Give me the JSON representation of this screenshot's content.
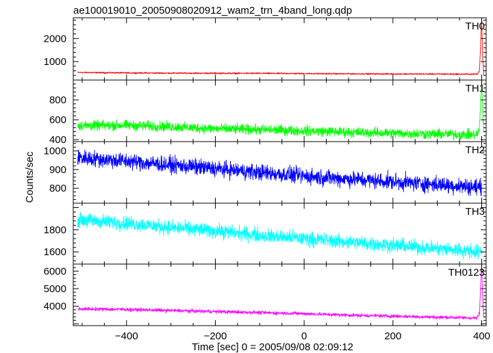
{
  "chart_data": {
    "type": "line",
    "title": "ae100019010_20050908020912_wam2_trn_4band_long.qdp",
    "xlabel": "Time [sec] 0 = 2005/09/08 02:09:12",
    "ylabel": "Counts/sec",
    "xlim": [
      -520,
      410
    ],
    "xticks": [
      -400,
      -200,
      0,
      200,
      400
    ],
    "xtick_labels": [
      "−400",
      "−200",
      "0",
      "200",
      "400"
    ],
    "grid": false,
    "panels": [
      {
        "name": "TH0",
        "color": "#ff0000",
        "ylim": [
          200,
          2900
        ],
        "yticks": [
          1000,
          2000
        ],
        "x": [
          -510,
          -400,
          -300,
          -200,
          -100,
          0,
          100,
          200,
          300,
          380,
          390,
          395,
          397,
          400,
          402,
          405
        ],
        "y": [
          530,
          510,
          500,
          495,
          490,
          480,
          470,
          465,
          460,
          455,
          455,
          600,
          1500,
          2900,
          1200,
          400
        ],
        "noise": 22
      },
      {
        "name": "TH1",
        "color": "#00ff00",
        "ylim": [
          380,
          1000
        ],
        "yticks": [
          400,
          600,
          800
        ],
        "x": [
          -510,
          -400,
          -300,
          -200,
          -100,
          0,
          100,
          200,
          300,
          380,
          390,
          395,
          397,
          400,
          402,
          405
        ],
        "y": [
          540,
          545,
          530,
          510,
          500,
          490,
          475,
          465,
          455,
          450,
          450,
          520,
          700,
          1000,
          700,
          450
        ],
        "noise": 35
      },
      {
        "name": "TH2",
        "color": "#0000ff",
        "ylim": [
          720,
          1050
        ],
        "yticks": [
          800,
          900,
          1000
        ],
        "x": [
          -510,
          -400,
          -300,
          -200,
          -100,
          0,
          100,
          200,
          300,
          400
        ],
        "y": [
          965,
          945,
          925,
          905,
          885,
          865,
          850,
          835,
          820,
          805
        ],
        "noise": 30
      },
      {
        "name": "TH3",
        "color": "#00ffff",
        "ylim": [
          1490,
          2040
        ],
        "yticks": [
          1600,
          1800
        ],
        "x": [
          -510,
          -400,
          -300,
          -200,
          -100,
          0,
          100,
          200,
          300,
          400
        ],
        "y": [
          1890,
          1860,
          1820,
          1790,
          1750,
          1720,
          1690,
          1660,
          1630,
          1600
        ],
        "noise": 45
      },
      {
        "name": "TH0123",
        "color": "#ff00ff",
        "ylim": [
          2900,
          6400
        ],
        "yticks": [
          4000,
          5000,
          6000
        ],
        "x": [
          -510,
          -400,
          -300,
          -200,
          -100,
          0,
          100,
          200,
          300,
          380,
          390,
          395,
          397,
          400,
          402,
          405
        ],
        "y": [
          3850,
          3820,
          3760,
          3700,
          3640,
          3580,
          3500,
          3440,
          3380,
          3340,
          3340,
          3600,
          4800,
          6400,
          4500,
          3300
        ],
        "noise": 70
      }
    ]
  }
}
